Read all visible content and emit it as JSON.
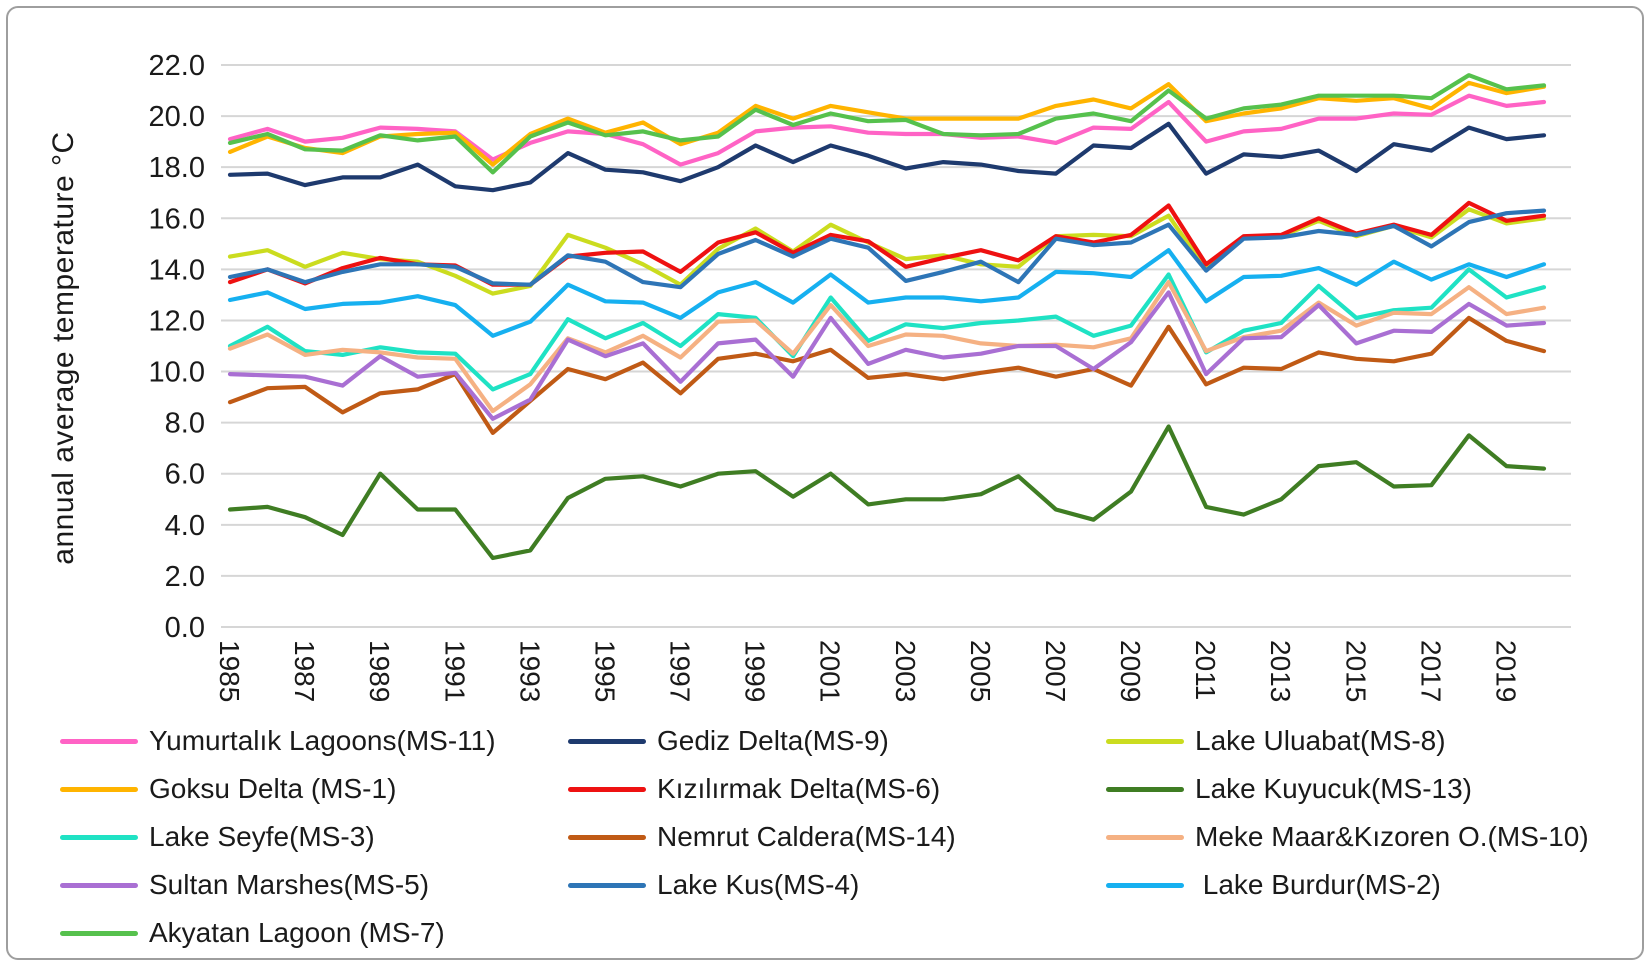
{
  "colors": {
    "background": "#ffffff",
    "frame_border": "#9e9e9e",
    "gridline": "#d6d6d6",
    "axis_text": "#1a1a1a"
  },
  "chart_data": {
    "type": "line",
    "title": "",
    "xlabel": "",
    "ylabel": "annual average temperature °C",
    "ylim": [
      0.0,
      22.0
    ],
    "ytick_step": 2.0,
    "ytick_labels": [
      "0.0",
      "2.0",
      "4.0",
      "6.0",
      "8.0",
      "10.0",
      "12.0",
      "14.0",
      "16.0",
      "18.0",
      "20.0",
      "22.0"
    ],
    "grid": true,
    "legend_position": "bottom, 3 columns",
    "x_years": [
      1985,
      1986,
      1987,
      1988,
      1989,
      1990,
      1991,
      1992,
      1993,
      1994,
      1995,
      1996,
      1997,
      1998,
      1999,
      2000,
      2001,
      2002,
      2003,
      2004,
      2005,
      2006,
      2007,
      2008,
      2009,
      2010,
      2011,
      2012,
      2013,
      2014,
      2015,
      2016,
      2017,
      2018,
      2019,
      2020
    ],
    "xtick_labels": [
      "1985",
      "1987",
      "1989",
      "1991",
      "1993",
      "1995",
      "1997",
      "1999",
      "2001",
      "2003",
      "2005",
      "2007",
      "2009",
      "2011",
      "2013",
      "2015",
      "2017",
      "2019"
    ],
    "series": [
      {
        "name": "Yumurtalık Lagoons(MS-11)",
        "color": "#ff63c5",
        "values": [
          19.1,
          19.5,
          19.0,
          19.15,
          19.55,
          19.5,
          19.4,
          18.3,
          18.95,
          19.4,
          19.3,
          18.9,
          18.1,
          18.55,
          19.4,
          19.55,
          19.6,
          19.35,
          19.3,
          19.3,
          19.15,
          19.2,
          18.95,
          19.55,
          19.5,
          20.55,
          19.0,
          19.4,
          19.5,
          19.9,
          19.9,
          20.1,
          20.05,
          20.8,
          20.4,
          20.55
        ]
      },
      {
        "name": "Gediz Delta(MS-9)",
        "color": "#1e3a6e",
        "values": [
          17.7,
          17.75,
          17.3,
          17.6,
          17.6,
          18.1,
          17.25,
          17.1,
          17.4,
          18.55,
          17.9,
          17.8,
          17.45,
          18.0,
          18.85,
          18.2,
          18.85,
          18.45,
          17.95,
          18.2,
          18.1,
          17.85,
          17.75,
          18.85,
          18.75,
          19.7,
          17.75,
          18.5,
          18.4,
          18.65,
          17.85,
          18.9,
          18.65,
          19.55,
          19.1,
          19.25
        ]
      },
      {
        "name": "Lake Uluabat(MS-8)",
        "color": "#cbdc1f",
        "values": [
          14.5,
          14.75,
          14.1,
          14.65,
          14.4,
          14.3,
          13.75,
          13.05,
          13.35,
          15.35,
          14.85,
          14.2,
          13.4,
          14.8,
          15.6,
          14.7,
          15.75,
          15.05,
          14.4,
          14.55,
          14.2,
          14.1,
          15.3,
          15.35,
          15.3,
          16.1,
          14.0,
          15.25,
          15.3,
          15.9,
          15.3,
          15.7,
          15.25,
          16.35,
          15.8,
          16.0
        ]
      },
      {
        "name": "Goksu Delta (MS-1)",
        "color": "#ffb400",
        "values": [
          18.6,
          19.2,
          18.75,
          18.55,
          19.2,
          19.3,
          19.35,
          18.1,
          19.3,
          19.9,
          19.35,
          19.75,
          18.9,
          19.35,
          20.4,
          19.9,
          20.4,
          20.15,
          19.9,
          19.9,
          19.9,
          19.9,
          20.4,
          20.65,
          20.3,
          21.25,
          19.8,
          20.1,
          20.3,
          20.7,
          20.6,
          20.7,
          20.3,
          21.3,
          20.9,
          21.15
        ]
      },
      {
        "name": "Kızılırmak Delta(MS-6)",
        "color": "#ee1111",
        "values": [
          13.5,
          14.0,
          13.45,
          14.05,
          14.45,
          14.2,
          14.15,
          13.4,
          13.4,
          14.5,
          14.65,
          14.7,
          13.9,
          15.05,
          15.45,
          14.65,
          15.35,
          15.1,
          14.1,
          14.45,
          14.75,
          14.35,
          15.3,
          15.05,
          15.35,
          16.5,
          14.2,
          15.3,
          15.35,
          16.0,
          15.4,
          15.75,
          15.35,
          16.6,
          15.9,
          16.1
        ]
      },
      {
        "name": "Lake Kuyucuk(MS-13)",
        "color": "#3f7d23",
        "values": [
          4.6,
          4.7,
          4.3,
          3.6,
          6.0,
          4.6,
          4.6,
          2.7,
          3.0,
          5.05,
          5.8,
          5.9,
          5.5,
          6.0,
          6.1,
          5.1,
          6.0,
          4.8,
          5.0,
          5.0,
          5.2,
          5.9,
          4.6,
          4.2,
          5.3,
          7.85,
          4.7,
          4.4,
          5.0,
          6.3,
          6.45,
          5.5,
          5.55,
          7.5,
          6.3,
          6.2
        ]
      },
      {
        "name": "Lake Seyfe(MS-3)",
        "color": "#1fe2c4",
        "values": [
          11.0,
          11.75,
          10.8,
          10.65,
          10.95,
          10.75,
          10.7,
          9.3,
          9.9,
          12.05,
          11.3,
          11.9,
          11.0,
          12.25,
          12.1,
          10.6,
          12.9,
          11.2,
          11.85,
          11.7,
          11.9,
          12.0,
          12.15,
          11.4,
          11.8,
          13.8,
          10.75,
          11.6,
          11.9,
          13.35,
          12.1,
          12.4,
          12.5,
          14.0,
          12.9,
          13.3
        ]
      },
      {
        "name": "Nemrut Caldera(MS-14)",
        "color": "#c05a15",
        "values": [
          8.8,
          9.35,
          9.4,
          8.4,
          9.15,
          9.3,
          9.9,
          7.6,
          8.85,
          10.1,
          9.7,
          10.35,
          9.15,
          10.5,
          10.7,
          10.4,
          10.85,
          9.75,
          9.9,
          9.7,
          9.95,
          10.15,
          9.8,
          10.1,
          9.45,
          11.75,
          9.5,
          10.15,
          10.1,
          10.75,
          10.5,
          10.4,
          10.7,
          12.1,
          11.2,
          10.8
        ]
      },
      {
        "name": "Meke Maar&Kızoren O.(MS-10)",
        "color": "#f5b183",
        "values": [
          10.9,
          11.45,
          10.65,
          10.85,
          10.75,
          10.55,
          10.5,
          8.45,
          9.5,
          11.3,
          10.75,
          11.4,
          10.55,
          11.95,
          12.0,
          10.7,
          12.6,
          11.0,
          11.45,
          11.4,
          11.1,
          11.0,
          11.05,
          10.95,
          11.3,
          13.5,
          10.8,
          11.35,
          11.6,
          12.7,
          11.8,
          12.3,
          12.25,
          13.3,
          12.25,
          12.5
        ]
      },
      {
        "name": "Sultan Marshes(MS-5)",
        "color": "#a96fd3",
        "values": [
          9.9,
          9.85,
          9.8,
          9.45,
          10.6,
          9.8,
          9.95,
          8.15,
          8.9,
          11.25,
          10.6,
          11.1,
          9.6,
          11.1,
          11.25,
          9.8,
          12.1,
          10.3,
          10.85,
          10.55,
          10.7,
          11.0,
          11.0,
          10.1,
          11.15,
          13.1,
          9.9,
          11.3,
          11.35,
          12.6,
          11.1,
          11.6,
          11.55,
          12.65,
          11.8,
          11.9
        ]
      },
      {
        "name": "Lake Kus(MS-4)",
        "color": "#2e75b6",
        "values": [
          13.7,
          14.0,
          13.5,
          13.9,
          14.2,
          14.2,
          14.1,
          13.45,
          13.4,
          14.55,
          14.3,
          13.5,
          13.3,
          14.6,
          15.15,
          14.5,
          15.2,
          14.85,
          13.55,
          13.9,
          14.3,
          13.5,
          15.2,
          14.95,
          15.05,
          15.75,
          13.95,
          15.2,
          15.25,
          15.5,
          15.35,
          15.7,
          14.9,
          15.85,
          16.2,
          16.3
        ]
      },
      {
        "name": " Lake Burdur(MS-2)",
        "color": "#16b0f0",
        "values": [
          12.8,
          13.1,
          12.45,
          12.65,
          12.7,
          12.95,
          12.6,
          11.4,
          11.95,
          13.4,
          12.75,
          12.7,
          12.1,
          13.1,
          13.5,
          12.7,
          13.8,
          12.7,
          12.9,
          12.9,
          12.75,
          12.9,
          13.9,
          13.85,
          13.7,
          14.75,
          12.75,
          13.7,
          13.75,
          14.05,
          13.4,
          14.3,
          13.6,
          14.2,
          13.7,
          14.2
        ]
      },
      {
        "name": "Akyatan Lagoon (MS-7)",
        "color": "#56c14d",
        "values": [
          18.95,
          19.3,
          18.7,
          18.65,
          19.25,
          19.05,
          19.2,
          17.8,
          19.2,
          19.75,
          19.25,
          19.4,
          19.05,
          19.2,
          20.25,
          19.65,
          20.1,
          19.8,
          19.85,
          19.3,
          19.25,
          19.3,
          19.9,
          20.1,
          19.8,
          21.0,
          19.9,
          20.3,
          20.45,
          20.8,
          20.8,
          20.8,
          20.7,
          21.6,
          21.05,
          21.2
        ]
      }
    ],
    "legend_columns": [
      [
        0,
        3,
        6,
        9,
        12
      ],
      [
        1,
        4,
        7,
        10
      ],
      [
        2,
        5,
        8,
        11
      ]
    ]
  }
}
